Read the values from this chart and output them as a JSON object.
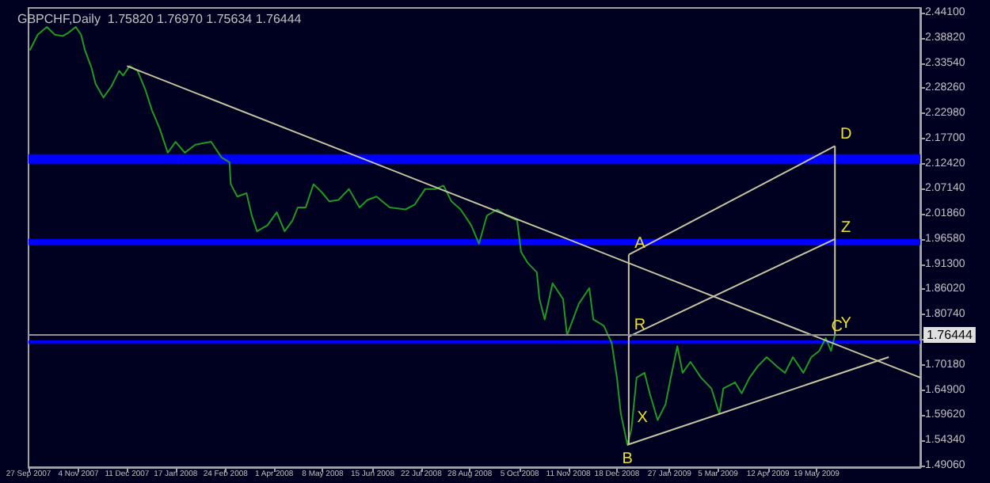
{
  "chart_data": {
    "type": "line",
    "title": "GBPCHF,Daily  1.75820 1.76970 1.75634 1.76444",
    "marker": "none",
    "xlim": [
      "2007-09-27",
      "2009-08-06"
    ],
    "ylim": [
      1.487,
      2.451
    ],
    "xticks": [
      {
        "value": "2007-09-27",
        "label": "27 Sep 2007"
      },
      {
        "value": "2007-11-04",
        "label": "4 Nov 2007"
      },
      {
        "value": "2007-12-11",
        "label": "11 Dec 2007"
      },
      {
        "value": "2008-01-17",
        "label": "17 Jan 2008"
      },
      {
        "value": "2008-02-24",
        "label": "24 Feb 2008"
      },
      {
        "value": "2008-04-01",
        "label": "1 Apr 2008"
      },
      {
        "value": "2008-05-08",
        "label": "8 May 2008"
      },
      {
        "value": "2008-06-15",
        "label": "15 Jun 2008"
      },
      {
        "value": "2008-07-22",
        "label": "22 Jul 2008"
      },
      {
        "value": "2008-08-28",
        "label": "28 Aug 2008"
      },
      {
        "value": "2008-10-05",
        "label": "5 Oct 2008"
      },
      {
        "value": "2008-11-11",
        "label": "11 Nov 2008"
      },
      {
        "value": "2008-12-18",
        "label": "18 Dec 2008"
      },
      {
        "value": "2009-01-27",
        "label": "27 Jan 2009"
      },
      {
        "value": "2009-03-05",
        "label": "5 Mar 2009"
      },
      {
        "value": "2009-04-12",
        "label": "12 Apr 2009"
      },
      {
        "value": "2009-05-19",
        "label": "19 May 2009"
      }
    ],
    "yticks": [
      {
        "value": 2.441,
        "label": "2.44100"
      },
      {
        "value": 2.3882,
        "label": "2.38820"
      },
      {
        "value": 2.3354,
        "label": "2.33540"
      },
      {
        "value": 2.2826,
        "label": "2.28260"
      },
      {
        "value": 2.2298,
        "label": "2.22980"
      },
      {
        "value": 2.177,
        "label": "2.17700"
      },
      {
        "value": 2.1242,
        "label": "2.12420"
      },
      {
        "value": 2.0714,
        "label": "2.07140"
      },
      {
        "value": 2.0186,
        "label": "2.01860"
      },
      {
        "value": 1.9658,
        "label": "1.96580"
      },
      {
        "value": 1.913,
        "label": "1.91300"
      },
      {
        "value": 1.8602,
        "label": "1.86020"
      },
      {
        "value": 1.8074,
        "label": "1.80740"
      },
      {
        "value": 1.7546,
        "label": null
      },
      {
        "value": 1.7018,
        "label": "1.70180"
      },
      {
        "value": 1.649,
        "label": "1.64900"
      },
      {
        "value": 1.5962,
        "label": "1.59620"
      },
      {
        "value": 1.5434,
        "label": "1.54340"
      },
      {
        "value": 1.4906,
        "label": "1.49060"
      }
    ],
    "series": [
      {
        "color": "#1f9a1f",
        "x": [
          "2007-09-28",
          "2007-10-04",
          "2007-10-11",
          "2007-10-17",
          "2007-10-23",
          "2007-10-27",
          "2007-11-02",
          "2007-11-06",
          "2007-11-09",
          "2007-11-14",
          "2007-11-17",
          "2007-11-23",
          "2007-11-29",
          "2007-12-05",
          "2007-12-08",
          "2007-12-13",
          "2007-12-19",
          "2007-12-25",
          "2007-12-30",
          "2008-01-05",
          "2008-01-11",
          "2008-01-17",
          "2008-01-24",
          "2008-02-01",
          "2008-02-13",
          "2008-02-21",
          "2008-02-27",
          "2008-02-28",
          "2008-03-04",
          "2008-03-11",
          "2008-03-15",
          "2008-03-19",
          "2008-03-27",
          "2008-04-03",
          "2008-04-09",
          "2008-04-15",
          "2008-04-19",
          "2008-04-25",
          "2008-05-01",
          "2008-05-07",
          "2008-05-13",
          "2008-05-20",
          "2008-05-28",
          "2008-06-05",
          "2008-06-11",
          "2008-06-18",
          "2008-06-28",
          "2008-07-10",
          "2008-07-17",
          "2008-07-25",
          "2008-08-02",
          "2008-08-08",
          "2008-08-14",
          "2008-08-21",
          "2008-08-29",
          "2008-09-04",
          "2008-09-10",
          "2008-09-18",
          "2008-09-25",
          "2008-10-03",
          "2008-10-06",
          "2008-10-11",
          "2008-10-18",
          "2008-10-20",
          "2008-10-24",
          "2008-10-30",
          "2008-11-07",
          "2008-11-10",
          "2008-11-19",
          "2008-11-27",
          "2008-11-30",
          "2008-12-08",
          "2008-12-14",
          "2008-12-18",
          "2008-12-21",
          "2008-12-26",
          "2008-12-29",
          "2009-01-02",
          "2009-01-08",
          "2009-01-12",
          "2009-01-18",
          "2009-01-24",
          "2009-01-28",
          "2009-02-02",
          "2009-02-06",
          "2009-02-12",
          "2009-02-20",
          "2009-02-28",
          "2009-03-06",
          "2009-03-09",
          "2009-03-18",
          "2009-03-23",
          "2009-03-29",
          "2009-04-04",
          "2009-04-11",
          "2009-04-19",
          "2009-04-25",
          "2009-05-01",
          "2009-05-09",
          "2009-05-15",
          "2009-05-21",
          "2009-05-26",
          "2009-05-30",
          "2009-06-02"
        ],
        "values": [
          2.362,
          2.395,
          2.411,
          2.395,
          2.392,
          2.398,
          2.411,
          2.395,
          2.362,
          2.325,
          2.292,
          2.263,
          2.286,
          2.319,
          2.309,
          2.329,
          2.319,
          2.279,
          2.236,
          2.197,
          2.147,
          2.17,
          2.147,
          2.164,
          2.17,
          2.137,
          2.127,
          2.081,
          2.055,
          2.062,
          2.015,
          1.982,
          1.995,
          2.022,
          1.982,
          2.005,
          2.032,
          2.032,
          2.081,
          2.065,
          2.045,
          2.048,
          2.071,
          2.032,
          2.048,
          2.055,
          2.032,
          2.028,
          2.038,
          2.071,
          2.071,
          2.078,
          2.045,
          2.028,
          1.995,
          1.956,
          2.015,
          2.028,
          2.015,
          2.005,
          1.939,
          1.916,
          1.896,
          1.84,
          1.797,
          1.873,
          1.84,
          1.764,
          1.83,
          1.863,
          1.797,
          1.784,
          1.748,
          1.675,
          1.599,
          1.534,
          1.566,
          1.675,
          1.685,
          1.642,
          1.586,
          1.619,
          1.675,
          1.741,
          1.685,
          1.708,
          1.675,
          1.652,
          1.599,
          1.652,
          1.665,
          1.642,
          1.675,
          1.698,
          1.718,
          1.698,
          1.685,
          1.718,
          1.685,
          1.718,
          1.731,
          1.758,
          1.731,
          1.764
        ]
      },
      {
        "color": "#c8c3a0",
        "x": [
          "2007-12-11",
          "2009-08-06"
        ],
        "values": [
          2.329,
          1.675
        ]
      },
      {
        "color": "#c8c3a0",
        "x": [
          "2008-12-26",
          "2009-07-13"
        ],
        "values": [
          1.534,
          1.718
        ]
      },
      {
        "color": "#c8c3a0",
        "x": [
          "2008-12-27",
          "2008-12-27"
        ],
        "values": [
          1.933,
          1.534
        ]
      },
      {
        "color": "#c8c3a0",
        "x": [
          "2009-06-02",
          "2009-06-02"
        ],
        "values": [
          1.764,
          2.161
        ]
      },
      {
        "color": "#c8c3a0",
        "x": [
          "2008-12-27",
          "2009-06-02"
        ],
        "values": [
          1.933,
          2.161
        ]
      },
      {
        "color": "#c8c3a0",
        "x": [
          "2008-12-27",
          "2009-06-02"
        ],
        "values": [
          1.761,
          1.966
        ]
      }
    ],
    "bands": [
      {
        "axis": "y",
        "from": 2.124,
        "to": 2.144,
        "color": "#0000ff"
      },
      {
        "axis": "y",
        "from": 1.953,
        "to": 1.966,
        "color": "#0000ff"
      },
      {
        "axis": "y",
        "from": 1.746,
        "to": 1.753,
        "color": "#0000ff"
      }
    ],
    "ref_lines": [
      {
        "axis": "y",
        "value": 1.76444,
        "label": "1.76444",
        "color": "#909090"
      }
    ],
    "annotations": [
      {
        "text": "A",
        "x": "2008-12-27",
        "y": 1.933
      },
      {
        "text": "B",
        "x": "2008-12-26",
        "y": 1.534
      },
      {
        "text": "C",
        "x": "2009-05-26",
        "y": 1.758
      },
      {
        "text": "D",
        "x": "2009-06-02",
        "y": 2.161
      },
      {
        "text": "R",
        "x": "2008-12-27",
        "y": 1.761
      },
      {
        "text": "X",
        "x": "2008-12-29",
        "y": 1.566
      },
      {
        "text": "Y",
        "x": "2009-06-02",
        "y": 1.764
      },
      {
        "text": "Z",
        "x": "2009-06-02",
        "y": 1.966
      }
    ]
  }
}
